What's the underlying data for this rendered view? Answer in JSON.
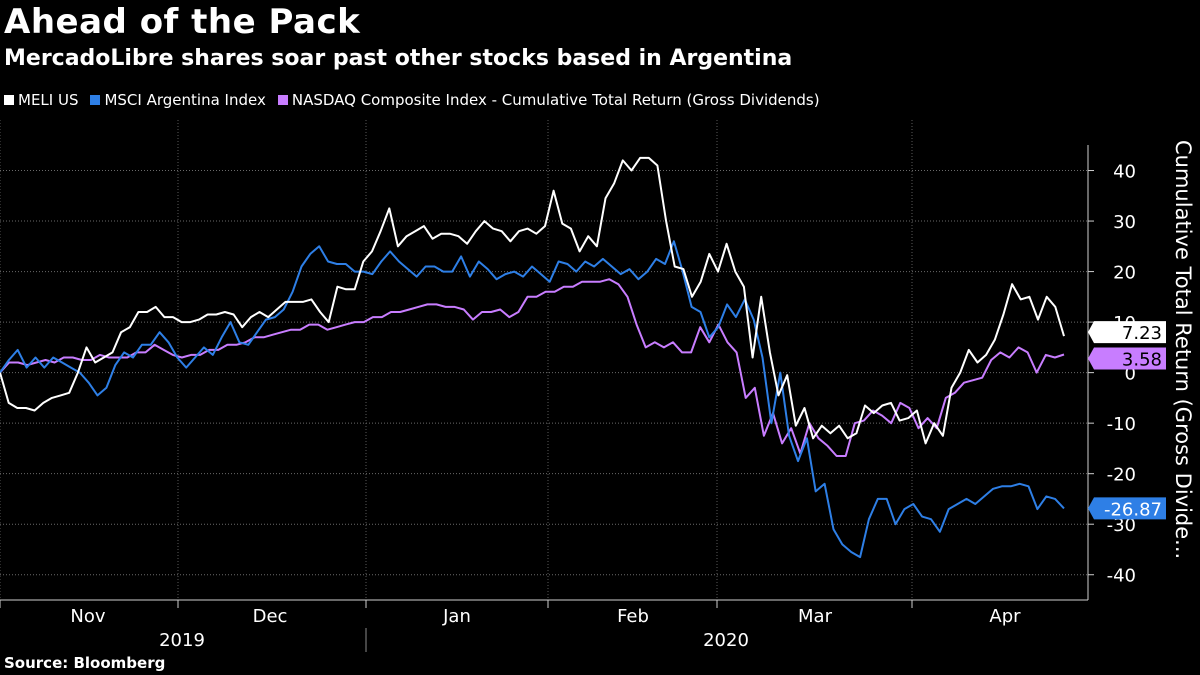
{
  "title": "Ahead of the Pack",
  "subtitle": "MercadoLibre shares soar past other stocks based in Argentina",
  "source": "Source: Bloomberg",
  "chart_data": {
    "type": "line",
    "ylabel": "Cumulative Total Return (Gross Divide...",
    "ylim": [
      -45,
      50
    ],
    "yticks": [
      -40,
      -30,
      -20,
      -10,
      0,
      10,
      20,
      30,
      40
    ],
    "xticks": [
      "Nov",
      "Dec",
      "Jan",
      "Feb",
      "Mar",
      "Apr"
    ],
    "years": [
      "2019",
      "2020"
    ],
    "grid": true,
    "legend_position": "top-left",
    "series": [
      {
        "name": "MELI US",
        "color": "#ffffff",
        "last_label": "7.23",
        "values": [
          0,
          -6,
          -7,
          -7,
          -7.5,
          -6,
          -5,
          -4.5,
          -4,
          0,
          5,
          2,
          3,
          4,
          8,
          9,
          12,
          12,
          13,
          11,
          11,
          10,
          10,
          10.5,
          11.5,
          11.5,
          12,
          11.5,
          9,
          11,
          12,
          11,
          12.5,
          14,
          14,
          14,
          14.5,
          12,
          10,
          17,
          16.5,
          16.5,
          22,
          24,
          28,
          32.5,
          25,
          27,
          28,
          29,
          26.5,
          27.5,
          27.5,
          27,
          25.5,
          28,
          30,
          28.5,
          28,
          26,
          28,
          28.5,
          27.5,
          29,
          36,
          29.5,
          28.5,
          24,
          27,
          25,
          34.5,
          37.5,
          42,
          40,
          42.5,
          42.5,
          41,
          30,
          21,
          20.5,
          15,
          18,
          23.5,
          20,
          25.5,
          20,
          17,
          3,
          15,
          4,
          -4.5,
          -0.5,
          -10.5,
          -7,
          -13,
          -10.5,
          -12,
          -10.5,
          -13,
          -12,
          -6.5,
          -8,
          -6.5,
          -6,
          -9.5,
          -9,
          -7.5,
          -14,
          -10,
          -12.5,
          -3,
          0,
          4.5,
          2,
          3.5,
          6.5,
          11.5,
          17.5,
          14.5,
          15,
          10.5,
          15,
          13,
          7.23
        ]
      },
      {
        "name": "MSCI Argentina Index",
        "color": "#2e7fe6",
        "last_label": "-26.87",
        "values": [
          0,
          2.5,
          4.5,
          1,
          3,
          1,
          3,
          2,
          1,
          0,
          -2,
          -4.5,
          -3,
          1.5,
          4,
          3,
          5.5,
          5.5,
          8,
          6,
          3,
          1,
          3,
          5,
          3.5,
          7,
          10,
          6,
          5.5,
          8,
          10.5,
          11,
          12.5,
          16,
          21,
          23.5,
          25,
          22,
          21.5,
          21.5,
          20,
          20,
          19.5,
          22,
          24,
          22,
          20.5,
          19,
          21,
          21,
          20,
          20,
          23,
          19,
          22,
          20.5,
          18.5,
          19.5,
          20,
          19,
          21,
          19.5,
          18,
          22,
          21.5,
          20,
          22,
          21,
          22.5,
          21,
          19.5,
          20.5,
          18.5,
          20,
          22.5,
          21.5,
          26,
          20,
          13,
          12,
          7,
          9,
          13.5,
          11,
          14.5,
          10.5,
          3,
          -10,
          0,
          -12.5,
          -17.5,
          -13,
          -23.5,
          -22,
          -31,
          -34,
          -35.5,
          -36.5,
          -29,
          -25,
          -25,
          -30,
          -27,
          -26,
          -28.5,
          -29,
          -31.5,
          -27,
          -26,
          -25,
          -26,
          -24.5,
          -23,
          -22.5,
          -22.5,
          -22,
          -22.5,
          -27,
          -24.5,
          -25,
          -26.87
        ]
      },
      {
        "name": "NASDAQ Composite Index - Cumulative Total Return (Gross Dividends)",
        "color": "#c87dff",
        "last_label": "3.58",
        "values": [
          0,
          2,
          2,
          1.5,
          2,
          2.5,
          2,
          3,
          3,
          2.5,
          2.5,
          3.5,
          3,
          3,
          3,
          4,
          4,
          5.5,
          4.5,
          3.5,
          3,
          3.5,
          3.5,
          4.5,
          4.5,
          5.5,
          5.5,
          6,
          7,
          7,
          7.5,
          8,
          8.5,
          8.5,
          9.5,
          9.5,
          8.5,
          9,
          9.5,
          10,
          10,
          11,
          11,
          12,
          12,
          12.5,
          13,
          13.5,
          13.5,
          13,
          13,
          12.5,
          10.5,
          12,
          12,
          12.5,
          11,
          12,
          15,
          15,
          16,
          16,
          17,
          17,
          18,
          18,
          18,
          18.5,
          17.5,
          15,
          9.5,
          5,
          6,
          5,
          6,
          4,
          4,
          9,
          6,
          9.5,
          6,
          4,
          -5,
          -3,
          -12.5,
          -8,
          -14,
          -11,
          -16,
          -10,
          -13,
          -14.5,
          -16.5,
          -16.5,
          -10,
          -9.5,
          -7.5,
          -8.5,
          -10,
          -6,
          -7,
          -11,
          -9,
          -11,
          -5,
          -4,
          -2,
          -1.5,
          -1,
          2.5,
          4,
          3,
          5,
          4,
          0,
          3.5,
          3,
          3.58
        ]
      }
    ]
  }
}
